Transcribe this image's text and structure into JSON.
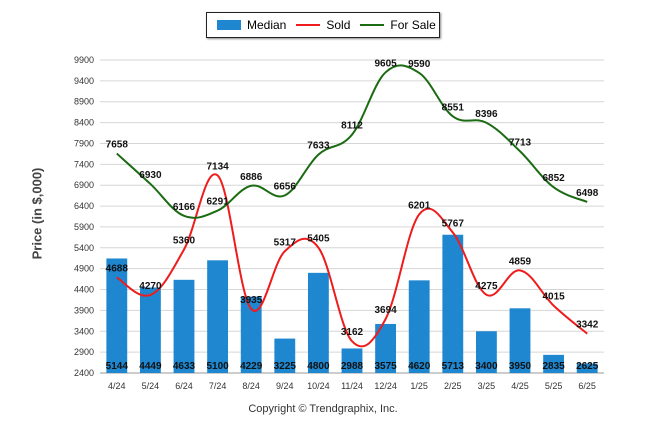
{
  "chart_data": {
    "type": "bar",
    "categories": [
      "4/24",
      "5/24",
      "6/24",
      "7/24",
      "8/24",
      "9/24",
      "10/24",
      "11/24",
      "12/24",
      "1/25",
      "2/25",
      "3/25",
      "4/25",
      "5/25",
      "6/25"
    ],
    "series": [
      {
        "name": "Median",
        "type": "bar",
        "color": "#1e87d0",
        "values": [
          5144,
          4449,
          4633,
          5100,
          4229,
          3225,
          4800,
          2988,
          3575,
          4620,
          5713,
          3400,
          3950,
          2835,
          2625
        ]
      },
      {
        "name": "Sold",
        "type": "line",
        "color": "#ee1c1c",
        "values": [
          4688,
          4270,
          5360,
          7134,
          3935,
          5317,
          5405,
          3162,
          3694,
          6201,
          5767,
          4275,
          4859,
          4015,
          3342
        ]
      },
      {
        "name": "For Sale",
        "type": "line",
        "color": "#1a6b12",
        "values": [
          7658,
          6930,
          6166,
          6291,
          6886,
          6656,
          7633,
          8112,
          9605,
          9590,
          8551,
          8396,
          7713,
          6852,
          6498
        ]
      }
    ],
    "ylabel": "Price (in $,000)",
    "xlabel": "",
    "ylim": [
      2400,
      9900
    ],
    "yticks": [
      2400,
      2900,
      3400,
      3900,
      4400,
      4900,
      5400,
      5900,
      6400,
      6900,
      7400,
      7900,
      8400,
      8900,
      9400,
      9900
    ],
    "grid": true,
    "legend": "top-center"
  },
  "copyright": "Copyright © Trendgraphix, Inc."
}
